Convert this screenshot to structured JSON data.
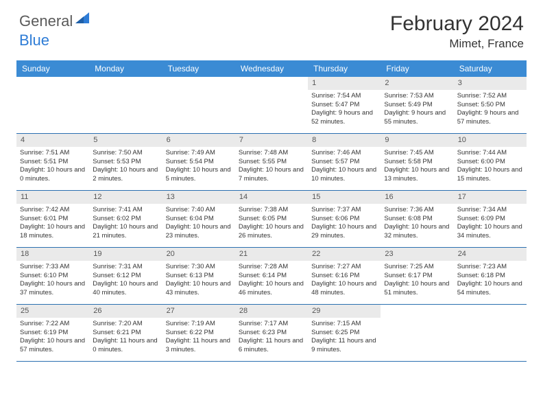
{
  "brand": {
    "general": "General",
    "blue": "Blue"
  },
  "title": "February 2024",
  "location": "Mimet, France",
  "weekdays": [
    "Sunday",
    "Monday",
    "Tuesday",
    "Wednesday",
    "Thursday",
    "Friday",
    "Saturday"
  ],
  "colors": {
    "header_bar": "#3b8bd4",
    "row_separator": "#2a6fb0",
    "day_number_bg": "#eaeaea",
    "text": "#333333",
    "logo_gray": "#5a5a5a",
    "logo_blue": "#2e7cd6"
  },
  "weeks": [
    [
      null,
      null,
      null,
      null,
      {
        "n": "1",
        "sunrise": "7:54 AM",
        "sunset": "5:47 PM",
        "dl": "9 hours and 52 minutes."
      },
      {
        "n": "2",
        "sunrise": "7:53 AM",
        "sunset": "5:49 PM",
        "dl": "9 hours and 55 minutes."
      },
      {
        "n": "3",
        "sunrise": "7:52 AM",
        "sunset": "5:50 PM",
        "dl": "9 hours and 57 minutes."
      }
    ],
    [
      {
        "n": "4",
        "sunrise": "7:51 AM",
        "sunset": "5:51 PM",
        "dl": "10 hours and 0 minutes."
      },
      {
        "n": "5",
        "sunrise": "7:50 AM",
        "sunset": "5:53 PM",
        "dl": "10 hours and 2 minutes."
      },
      {
        "n": "6",
        "sunrise": "7:49 AM",
        "sunset": "5:54 PM",
        "dl": "10 hours and 5 minutes."
      },
      {
        "n": "7",
        "sunrise": "7:48 AM",
        "sunset": "5:55 PM",
        "dl": "10 hours and 7 minutes."
      },
      {
        "n": "8",
        "sunrise": "7:46 AM",
        "sunset": "5:57 PM",
        "dl": "10 hours and 10 minutes."
      },
      {
        "n": "9",
        "sunrise": "7:45 AM",
        "sunset": "5:58 PM",
        "dl": "10 hours and 13 minutes."
      },
      {
        "n": "10",
        "sunrise": "7:44 AM",
        "sunset": "6:00 PM",
        "dl": "10 hours and 15 minutes."
      }
    ],
    [
      {
        "n": "11",
        "sunrise": "7:42 AM",
        "sunset": "6:01 PM",
        "dl": "10 hours and 18 minutes."
      },
      {
        "n": "12",
        "sunrise": "7:41 AM",
        "sunset": "6:02 PM",
        "dl": "10 hours and 21 minutes."
      },
      {
        "n": "13",
        "sunrise": "7:40 AM",
        "sunset": "6:04 PM",
        "dl": "10 hours and 23 minutes."
      },
      {
        "n": "14",
        "sunrise": "7:38 AM",
        "sunset": "6:05 PM",
        "dl": "10 hours and 26 minutes."
      },
      {
        "n": "15",
        "sunrise": "7:37 AM",
        "sunset": "6:06 PM",
        "dl": "10 hours and 29 minutes."
      },
      {
        "n": "16",
        "sunrise": "7:36 AM",
        "sunset": "6:08 PM",
        "dl": "10 hours and 32 minutes."
      },
      {
        "n": "17",
        "sunrise": "7:34 AM",
        "sunset": "6:09 PM",
        "dl": "10 hours and 34 minutes."
      }
    ],
    [
      {
        "n": "18",
        "sunrise": "7:33 AM",
        "sunset": "6:10 PM",
        "dl": "10 hours and 37 minutes."
      },
      {
        "n": "19",
        "sunrise": "7:31 AM",
        "sunset": "6:12 PM",
        "dl": "10 hours and 40 minutes."
      },
      {
        "n": "20",
        "sunrise": "7:30 AM",
        "sunset": "6:13 PM",
        "dl": "10 hours and 43 minutes."
      },
      {
        "n": "21",
        "sunrise": "7:28 AM",
        "sunset": "6:14 PM",
        "dl": "10 hours and 46 minutes."
      },
      {
        "n": "22",
        "sunrise": "7:27 AM",
        "sunset": "6:16 PM",
        "dl": "10 hours and 48 minutes."
      },
      {
        "n": "23",
        "sunrise": "7:25 AM",
        "sunset": "6:17 PM",
        "dl": "10 hours and 51 minutes."
      },
      {
        "n": "24",
        "sunrise": "7:23 AM",
        "sunset": "6:18 PM",
        "dl": "10 hours and 54 minutes."
      }
    ],
    [
      {
        "n": "25",
        "sunrise": "7:22 AM",
        "sunset": "6:19 PM",
        "dl": "10 hours and 57 minutes."
      },
      {
        "n": "26",
        "sunrise": "7:20 AM",
        "sunset": "6:21 PM",
        "dl": "11 hours and 0 minutes."
      },
      {
        "n": "27",
        "sunrise": "7:19 AM",
        "sunset": "6:22 PM",
        "dl": "11 hours and 3 minutes."
      },
      {
        "n": "28",
        "sunrise": "7:17 AM",
        "sunset": "6:23 PM",
        "dl": "11 hours and 6 minutes."
      },
      {
        "n": "29",
        "sunrise": "7:15 AM",
        "sunset": "6:25 PM",
        "dl": "11 hours and 9 minutes."
      },
      null,
      null
    ]
  ]
}
